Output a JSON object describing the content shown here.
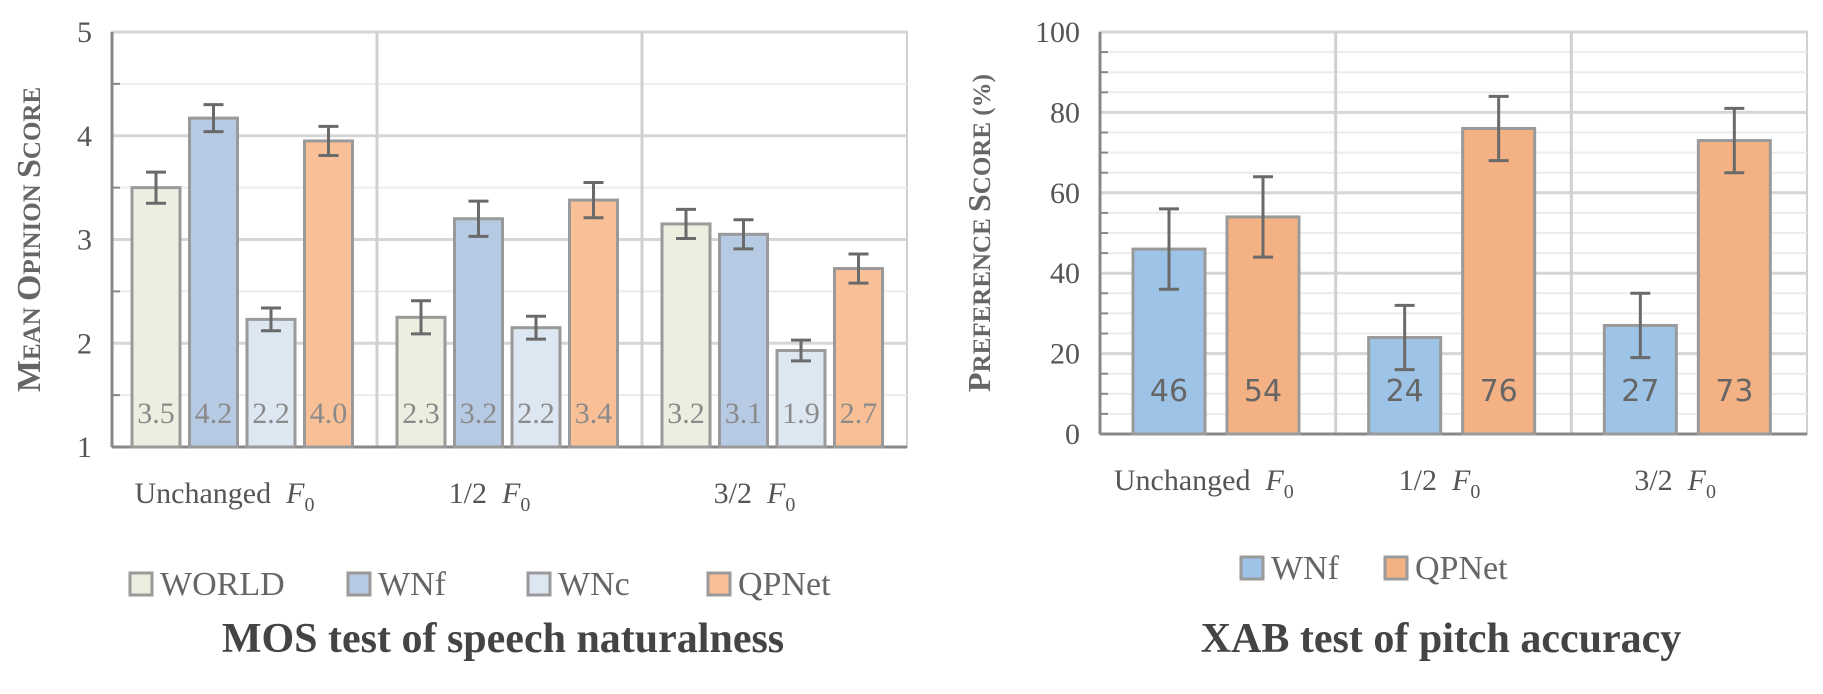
{
  "chart_data": [
    {
      "type": "bar",
      "title": "MOS test of speech naturalness",
      "ylabel": "Mean opinion score",
      "ylim": [
        1,
        5
      ],
      "yticks": [
        "1",
        "2",
        "3",
        "4",
        "5"
      ],
      "categories": [
        {
          "prefix": "Unchanged",
          "symbol": "F",
          "sub": "0"
        },
        {
          "prefix": "1/2",
          "symbol": "F",
          "sub": "0"
        },
        {
          "prefix": "3/2",
          "symbol": "F",
          "sub": "0"
        }
      ],
      "series": [
        {
          "name": "WORLD",
          "color": "#EAEFDF",
          "values": [
            3.5,
            2.25,
            3.15
          ],
          "labels": [
            "3.5",
            "2.3",
            "3.2"
          ],
          "err": [
            0.15,
            0.16,
            0.14
          ]
        },
        {
          "name": "WNf",
          "color": "#B7CAE3",
          "values": [
            4.17,
            3.2,
            3.05
          ],
          "labels": [
            "4.2",
            "3.2",
            "3.1"
          ],
          "err": [
            0.13,
            0.17,
            0.14
          ]
        },
        {
          "name": "WNc",
          "color": "#DDE7F2",
          "values": [
            2.23,
            2.15,
            1.93
          ],
          "labels": [
            "2.2",
            "2.2",
            "1.9"
          ],
          "err": [
            0.11,
            0.11,
            0.1
          ]
        },
        {
          "name": "QPNet",
          "color": "#F9BF96",
          "values": [
            3.95,
            3.38,
            2.72
          ],
          "labels": [
            "4.0",
            "3.4",
            "2.7"
          ],
          "err": [
            0.14,
            0.17,
            0.14
          ]
        }
      ],
      "grid": true,
      "legend": "bottom"
    },
    {
      "type": "bar",
      "title": "XAB test of pitch accuracy",
      "ylabel": "Preference score (%)",
      "ylim": [
        0,
        100
      ],
      "yticks": [
        "0",
        "20",
        "40",
        "60",
        "80",
        "100"
      ],
      "categories": [
        {
          "prefix": "Unchanged",
          "symbol": "F",
          "sub": "0"
        },
        {
          "prefix": "1/2",
          "symbol": "F",
          "sub": "0"
        },
        {
          "prefix": "3/2",
          "symbol": "F",
          "sub": "0"
        }
      ],
      "series": [
        {
          "name": "WNf",
          "color": "#9DC3E6",
          "values": [
            46,
            24,
            27
          ],
          "labels": [
            "46",
            "24",
            "27"
          ],
          "err": [
            10,
            8,
            8
          ]
        },
        {
          "name": "QPNet",
          "color": "#F4B183",
          "values": [
            54,
            76,
            73
          ],
          "labels": [
            "54",
            "76",
            "73"
          ],
          "err": [
            10,
            8,
            8
          ]
        }
      ],
      "grid": true,
      "legend": "bottom"
    }
  ]
}
